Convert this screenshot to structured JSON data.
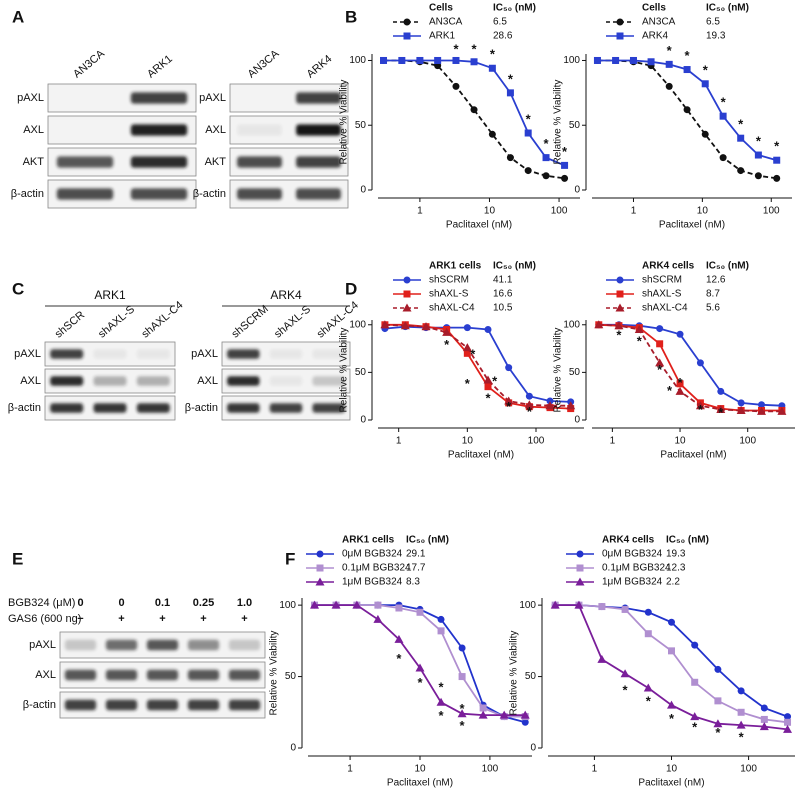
{
  "panels": [
    "A",
    "B",
    "C",
    "D",
    "E",
    "F"
  ],
  "blots": [
    {
      "lanes": [
        "AN3CA",
        "ARK1"
      ],
      "lane_colors": [
        "#111111",
        "#2a3fd0"
      ],
      "rows": [
        "pAXL",
        "AXL",
        "AKT",
        "β-actin"
      ],
      "bands": [
        [
          0,
          0.8
        ],
        [
          0,
          0.95
        ],
        [
          0.7,
          0.9
        ],
        [
          0.75,
          0.75
        ]
      ]
    },
    {
      "lanes": [
        "AN3CA",
        "ARK4"
      ],
      "lane_colors": [
        "#111111",
        "#2a3fd0"
      ],
      "rows": [
        "pAXL",
        "AXL",
        "AKT",
        "β-actin"
      ],
      "bands": [
        [
          0,
          0.8
        ],
        [
          0.05,
          1
        ],
        [
          0.75,
          0.8
        ],
        [
          0.75,
          0.75
        ]
      ]
    },
    {
      "title": "ARK1",
      "lanes": [
        "shSCR",
        "shAXL-S",
        "shAXL-C4"
      ],
      "lane_colors": [
        "#2a3fd0",
        "#d0201b",
        "#d0201b"
      ],
      "rows": [
        "pAXL",
        "AXL",
        "β-actin"
      ],
      "bands": [
        [
          0.8,
          0.05,
          0.05
        ],
        [
          0.9,
          0.3,
          0.3
        ],
        [
          0.85,
          0.85,
          0.85
        ]
      ]
    },
    {
      "title": "ARK4",
      "lanes": [
        "shSCRM",
        "shAXL-S",
        "shAXL-C4"
      ],
      "lane_colors": [
        "#2a3fd0",
        "#d0201b",
        "#d0201b"
      ],
      "rows": [
        "pAXL",
        "AXL",
        "β-actin"
      ],
      "bands": [
        [
          0.8,
          0.05,
          0.05
        ],
        [
          0.9,
          0.05,
          0.2
        ],
        [
          0.85,
          0.8,
          0.8
        ]
      ]
    },
    {
      "conditions": [
        {
          "label": "BGB324 (μM)",
          "values": [
            "0",
            "0",
            "0.1",
            "0.25",
            "1.0"
          ]
        },
        {
          "label": "GAS6 (600 ng)",
          "values": [
            "−",
            "+",
            "+",
            "+",
            "+"
          ]
        }
      ],
      "rows": [
        "pAXL",
        "AXL",
        "β-actin"
      ],
      "bands": [
        [
          0.2,
          0.6,
          0.7,
          0.45,
          0.2
        ],
        [
          0.7,
          0.7,
          0.7,
          0.7,
          0.7
        ],
        [
          0.8,
          0.8,
          0.8,
          0.8,
          0.8
        ]
      ]
    }
  ],
  "chart_data": [
    {
      "type": "line",
      "log_x": true,
      "xlabel": "Paclitaxel (nM)",
      "ylabel": "Relative % Viability",
      "legend_title": "Cells",
      "legend_value_title": "IC₅₀ (nM)",
      "x": [
        0.3,
        0.55,
        1,
        1.8,
        3.3,
        6,
        11,
        20,
        36,
        65,
        120
      ],
      "xlim": [
        0.25,
        200
      ],
      "ylim": [
        0,
        105
      ],
      "xticks": [
        1,
        10,
        100
      ],
      "yticks": [
        0,
        50,
        100
      ],
      "series": [
        {
          "name": "AN3CA",
          "ic50": 6.5,
          "color": "#111111",
          "marker": "circle",
          "dashed": true,
          "values": [
            100,
            100,
            99,
            96,
            80,
            62,
            43,
            25,
            15,
            11,
            9
          ]
        },
        {
          "name": "ARK1",
          "ic50": 28.6,
          "color": "#2a3fd0",
          "marker": "square",
          "dashed": false,
          "values": [
            100,
            100,
            100,
            100,
            100,
            99,
            94,
            75,
            44,
            25,
            19
          ]
        }
      ],
      "annotations": [
        {
          "text": "*",
          "x": 3.3,
          "y": 108
        },
        {
          "text": "*",
          "x": 6,
          "y": 108
        },
        {
          "text": "*",
          "x": 11,
          "y": 104
        },
        {
          "text": "*",
          "x": 20,
          "y": 85
        },
        {
          "text": "*",
          "x": 36,
          "y": 54
        },
        {
          "text": "*",
          "x": 65,
          "y": 35
        },
        {
          "text": "*",
          "x": 120,
          "y": 29
        }
      ]
    },
    {
      "type": "line",
      "log_x": true,
      "xlabel": "Paclitaxel (nM)",
      "ylabel": "Relative % Viability",
      "legend_title": "Cells",
      "legend_value_title": "IC₅₀ (nM)",
      "x": [
        0.3,
        0.55,
        1,
        1.8,
        3.3,
        6,
        11,
        20,
        36,
        65,
        120
      ],
      "xlim": [
        0.25,
        200
      ],
      "ylim": [
        0,
        105
      ],
      "xticks": [
        1,
        10,
        100
      ],
      "yticks": [
        0,
        50,
        100
      ],
      "series": [
        {
          "name": "AN3CA",
          "ic50": 6.5,
          "color": "#111111",
          "marker": "circle",
          "dashed": true,
          "values": [
            100,
            100,
            99,
            96,
            80,
            62,
            43,
            25,
            15,
            11,
            9
          ]
        },
        {
          "name": "ARK4",
          "ic50": 19.3,
          "color": "#2a3fd0",
          "marker": "square",
          "dashed": false,
          "values": [
            100,
            100,
            100,
            99,
            97,
            93,
            82,
            57,
            40,
            27,
            23
          ]
        }
      ],
      "annotations": [
        {
          "text": "*",
          "x": 3.3,
          "y": 107
        },
        {
          "text": "*",
          "x": 6,
          "y": 103
        },
        {
          "text": "*",
          "x": 11,
          "y": 92
        },
        {
          "text": "*",
          "x": 20,
          "y": 67
        },
        {
          "text": "*",
          "x": 36,
          "y": 50
        },
        {
          "text": "*",
          "x": 65,
          "y": 37
        },
        {
          "text": "*",
          "x": 120,
          "y": 33
        }
      ]
    },
    {
      "type": "line",
      "log_x": true,
      "xlabel": "Paclitaxel (nM)",
      "ylabel": "Relative % Viability",
      "legend_title": "ARK1 cells",
      "legend_value_title": "IC₅₀ (nM)",
      "x": [
        0.63,
        1.25,
        2.5,
        5,
        10,
        20,
        40,
        80,
        160,
        320
      ],
      "xlim": [
        0.5,
        500
      ],
      "ylim": [
        0,
        105
      ],
      "xticks": [
        1,
        10,
        100
      ],
      "yticks": [
        0,
        50,
        100
      ],
      "series": [
        {
          "name": "shSCRM",
          "ic50": 41.1,
          "color": "#2a3fd0",
          "marker": "circle",
          "dashed": false,
          "values": [
            96,
            98,
            97,
            97,
            97,
            95,
            55,
            25,
            20,
            19
          ]
        },
        {
          "name": "shAXL-S",
          "ic50": 16.6,
          "color": "#e0201b",
          "marker": "square",
          "dashed": false,
          "values": [
            100,
            100,
            98,
            95,
            70,
            35,
            18,
            14,
            13,
            12
          ]
        },
        {
          "name": "shAXL-C4",
          "ic50": 10.5,
          "color": "#a81c2a",
          "marker": "triangle",
          "dashed": true,
          "values": [
            100,
            99,
            98,
            92,
            76,
            42,
            20,
            16,
            15,
            15
          ]
        }
      ],
      "annotations": [
        {
          "text": "*",
          "x": 5,
          "y": 78
        },
        {
          "text": "*",
          "x": 10,
          "y": 37
        },
        {
          "text": "*",
          "x": 12,
          "y": 68
        },
        {
          "text": "*",
          "x": 20,
          "y": 22
        },
        {
          "text": "*",
          "x": 25,
          "y": 40
        },
        {
          "text": "*",
          "x": 40,
          "y": 13
        },
        {
          "text": "*",
          "x": 80,
          "y": 8
        }
      ]
    },
    {
      "type": "line",
      "log_x": true,
      "xlabel": "Paclitaxel (nM)",
      "ylabel": "Relative % Viability",
      "legend_title": "ARK4 cells",
      "legend_value_title": "IC₅₀ (nM)",
      "x": [
        0.63,
        1.25,
        2.5,
        5,
        10,
        20,
        40,
        80,
        160,
        320
      ],
      "xlim": [
        0.5,
        500
      ],
      "ylim": [
        0,
        105
      ],
      "xticks": [
        1,
        10,
        100
      ],
      "yticks": [
        0,
        50,
        100
      ],
      "series": [
        {
          "name": "shSCRM",
          "ic50": 12.6,
          "color": "#2a3fd0",
          "marker": "circle",
          "dashed": false,
          "values": [
            100,
            100,
            99,
            96,
            90,
            60,
            30,
            18,
            16,
            15
          ]
        },
        {
          "name": "shAXL-S",
          "ic50": 8.7,
          "color": "#e0201b",
          "marker": "square",
          "dashed": false,
          "values": [
            100,
            99,
            97,
            80,
            38,
            18,
            12,
            10,
            10,
            10
          ]
        },
        {
          "name": "shAXL-C4",
          "ic50": 5.6,
          "color": "#a81c2a",
          "marker": "triangle",
          "dashed": true,
          "values": [
            100,
            99,
            95,
            60,
            30,
            15,
            11,
            10,
            9,
            9
          ]
        }
      ],
      "annotations": [
        {
          "text": "*",
          "x": 1.25,
          "y": 88
        },
        {
          "text": "*",
          "x": 2.5,
          "y": 82
        },
        {
          "text": "*",
          "x": 5,
          "y": 52
        },
        {
          "text": "*",
          "x": 7,
          "y": 30
        },
        {
          "text": "*",
          "x": 10,
          "y": 38
        },
        {
          "text": "*",
          "x": 20,
          "y": 10
        },
        {
          "text": "*",
          "x": 40,
          "y": 7
        }
      ]
    },
    {
      "type": "line",
      "log_x": true,
      "xlabel": "Paclitaxel (nM)",
      "ylabel": "Relative % Viability",
      "legend_title": "ARK1 cells",
      "legend_value_title": "IC₅₀ (nM)",
      "x": [
        0.31,
        0.63,
        1.25,
        2.5,
        5,
        10,
        20,
        40,
        80,
        160,
        320
      ],
      "xlim": [
        0.25,
        400
      ],
      "ylim": [
        0,
        105
      ],
      "xticks": [
        1,
        10,
        100
      ],
      "yticks": [
        0,
        50,
        100
      ],
      "series": [
        {
          "name": "0μM BGB324",
          "ic50": 29.1,
          "color": "#2233cc",
          "marker": "circle",
          "dashed": false,
          "values": [
            100,
            100,
            100,
            100,
            100,
            97,
            90,
            70,
            30,
            22,
            18
          ]
        },
        {
          "name": "0.1μM BGB324",
          "ic50": 17.7,
          "color": "#b08fd0",
          "marker": "square",
          "dashed": false,
          "values": [
            100,
            100,
            100,
            100,
            98,
            95,
            82,
            50,
            28,
            22,
            22
          ]
        },
        {
          "name": "1μM BGB324",
          "ic50": 8.3,
          "color": "#7a1e9a",
          "marker": "triangle",
          "dashed": false,
          "values": [
            100,
            100,
            100,
            90,
            76,
            56,
            32,
            24,
            23,
            23,
            23
          ]
        }
      ],
      "annotations": [
        {
          "text": "*",
          "x": 5,
          "y": 62
        },
        {
          "text": "*",
          "x": 10,
          "y": 45
        },
        {
          "text": "*",
          "x": 20,
          "y": 42
        },
        {
          "text": "*",
          "x": 20,
          "y": 22
        },
        {
          "text": "*",
          "x": 40,
          "y": 15
        },
        {
          "text": "*",
          "x": 40,
          "y": 27
        }
      ]
    },
    {
      "type": "line",
      "log_x": true,
      "xlabel": "Paclitaxel (nM)",
      "ylabel": "Relative % Viability",
      "legend_title": "ARK4 cells",
      "legend_value_title": "IC₅₀ (nM)",
      "x": [
        0.31,
        0.63,
        1.25,
        2.5,
        5,
        10,
        20,
        40,
        80,
        160,
        320
      ],
      "xlim": [
        0.25,
        400
      ],
      "ylim": [
        0,
        105
      ],
      "xticks": [
        1,
        10,
        100
      ],
      "yticks": [
        0,
        50,
        100
      ],
      "series": [
        {
          "name": "0μM BGB324",
          "ic50": 19.3,
          "color": "#2233cc",
          "marker": "circle",
          "dashed": false,
          "values": [
            100,
            100,
            99,
            98,
            95,
            88,
            72,
            55,
            40,
            28,
            22
          ]
        },
        {
          "name": "0.1μM BGB324",
          "ic50": 12.3,
          "color": "#b08fd0",
          "marker": "square",
          "dashed": false,
          "values": [
            100,
            100,
            99,
            97,
            80,
            68,
            46,
            33,
            25,
            20,
            18
          ]
        },
        {
          "name": "1μM BGB324",
          "ic50": 2.2,
          "color": "#7a1e9a",
          "marker": "triangle",
          "dashed": false,
          "values": [
            100,
            100,
            62,
            52,
            42,
            30,
            22,
            17,
            16,
            15,
            13
          ]
        }
      ],
      "annotations": [
        {
          "text": "*",
          "x": 2.5,
          "y": 40
        },
        {
          "text": "*",
          "x": 5,
          "y": 32
        },
        {
          "text": "*",
          "x": 10,
          "y": 20
        },
        {
          "text": "*",
          "x": 20,
          "y": 14
        },
        {
          "text": "*",
          "x": 40,
          "y": 10
        },
        {
          "text": "*",
          "x": 80,
          "y": 7
        }
      ]
    }
  ]
}
